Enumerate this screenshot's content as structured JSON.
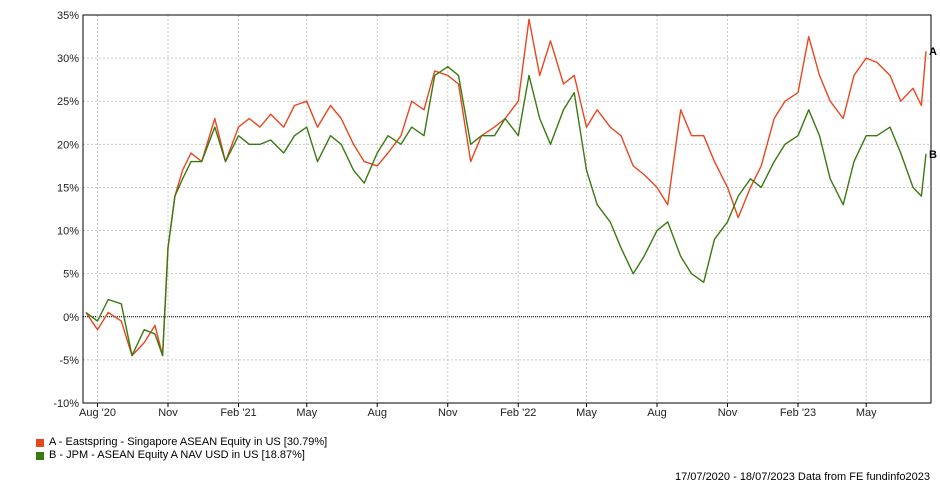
{
  "chart_data": {
    "type": "line",
    "title": "",
    "xlabel": "",
    "ylabel": "",
    "ylim": [
      -10,
      35
    ],
    "y_ticks": [
      "35%",
      "30%",
      "25%",
      "20%",
      "15%",
      "10%",
      "5%",
      "0%",
      "-5%",
      "-10%"
    ],
    "x_ticks": [
      "Aug '20",
      "Nov",
      "Feb '21",
      "May",
      "Aug",
      "Nov",
      "Feb '22",
      "May",
      "Aug",
      "Nov",
      "Feb '23",
      "May"
    ],
    "grid": true,
    "legend_position": "bottom-left",
    "x": [
      "2020-07-17",
      "2020-08-01",
      "2020-08-15",
      "2020-09-01",
      "2020-09-15",
      "2020-10-01",
      "2020-10-15",
      "2020-10-25",
      "2020-11-01",
      "2020-11-10",
      "2020-11-20",
      "2020-12-01",
      "2020-12-15",
      "2021-01-01",
      "2021-01-15",
      "2021-02-01",
      "2021-02-15",
      "2021-03-01",
      "2021-03-15",
      "2021-04-01",
      "2021-04-15",
      "2021-05-01",
      "2021-05-15",
      "2021-06-01",
      "2021-06-15",
      "2021-07-01",
      "2021-07-15",
      "2021-08-01",
      "2021-08-15",
      "2021-09-01",
      "2021-09-15",
      "2021-10-01",
      "2021-10-15",
      "2021-11-01",
      "2021-11-15",
      "2021-12-01",
      "2021-12-15",
      "2022-01-01",
      "2022-01-15",
      "2022-02-01",
      "2022-02-15",
      "2022-03-01",
      "2022-03-15",
      "2022-04-01",
      "2022-04-15",
      "2022-05-01",
      "2022-05-15",
      "2022-06-01",
      "2022-06-15",
      "2022-07-01",
      "2022-07-15",
      "2022-08-01",
      "2022-08-15",
      "2022-09-01",
      "2022-09-15",
      "2022-10-01",
      "2022-10-15",
      "2022-11-01",
      "2022-11-15",
      "2022-12-01",
      "2022-12-15",
      "2023-01-01",
      "2023-01-15",
      "2023-02-01",
      "2023-02-15",
      "2023-03-01",
      "2023-03-15",
      "2023-04-01",
      "2023-04-15",
      "2023-05-01",
      "2023-05-15",
      "2023-06-01",
      "2023-06-15",
      "2023-07-01",
      "2023-07-12",
      "2023-07-18"
    ],
    "series": [
      {
        "name": "A - Eastspring - Singapore ASEAN Equity in US [30.79%]",
        "marker": "A",
        "color": "#e8471e",
        "values": [
          0.5,
          -1.5,
          0.5,
          -0.5,
          -4.5,
          -3,
          -1,
          -4.5,
          8,
          14,
          17,
          19,
          18,
          23,
          18,
          22,
          23,
          22,
          23.5,
          22,
          24.5,
          25,
          22,
          24.5,
          23,
          20,
          18,
          17.5,
          19,
          21,
          25,
          24,
          28.5,
          28,
          27,
          18,
          21,
          22,
          23,
          25,
          34.5,
          28,
          32,
          27,
          28,
          22,
          24,
          22,
          21,
          17.5,
          16.5,
          15,
          13,
          24,
          21,
          21,
          18,
          15,
          11.5,
          15,
          17.5,
          23,
          25,
          26,
          32.5,
          28,
          25,
          23,
          28,
          30,
          29.5,
          28,
          25,
          26.5,
          24.5,
          30.8
        ]
      },
      {
        "name": "B - JPM - ASEAN Equity A NAV USD in US [18.87%]",
        "marker": "B",
        "color": "#3a7a10",
        "values": [
          0.5,
          -0.5,
          2,
          1.5,
          -4.5,
          -1.5,
          -2,
          -4.5,
          8,
          14,
          16,
          18,
          18,
          22,
          18,
          21,
          20,
          20,
          20.5,
          19,
          21,
          22,
          18,
          21,
          20,
          17,
          15.5,
          19,
          21,
          20,
          22,
          21,
          28,
          29,
          28,
          20,
          21,
          21,
          23,
          21,
          28,
          23,
          20,
          24,
          26,
          17,
          13,
          11,
          8,
          5,
          7,
          10,
          11,
          7,
          5,
          4,
          9,
          11,
          14,
          16,
          15,
          18,
          20,
          21,
          24,
          21,
          16,
          13,
          18,
          21,
          21,
          22,
          19,
          15,
          14,
          18.9
        ]
      }
    ],
    "zero_line": true
  },
  "legend": {
    "items": [
      {
        "label": "A - Eastspring - Singapore ASEAN Equity in US [30.79%]",
        "color": "#e8471e"
      },
      {
        "label": "B - JPM - ASEAN Equity A NAV USD in US [18.87%]",
        "color": "#3a7a10"
      }
    ]
  },
  "footer": {
    "text": "17/07/2020 - 18/07/2023 Data from FE fundinfo2023"
  }
}
